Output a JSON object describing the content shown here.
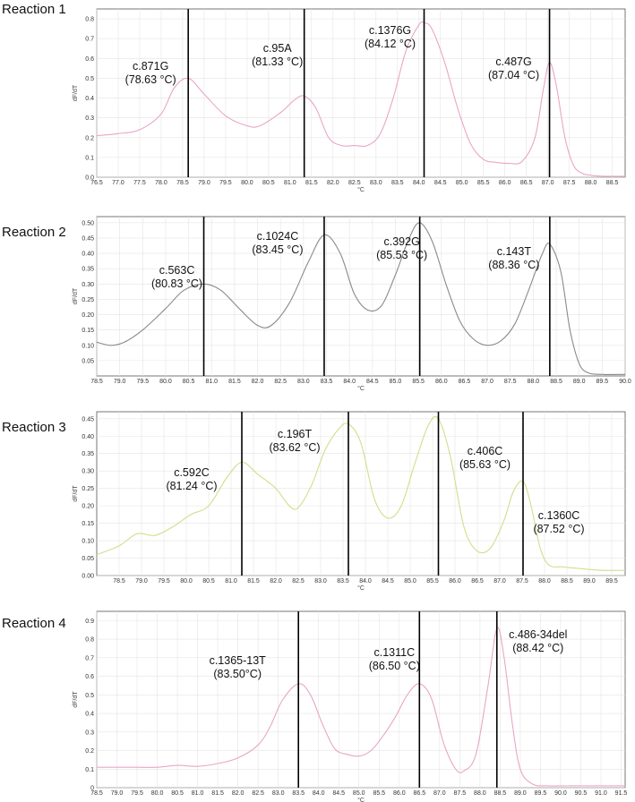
{
  "chart_data": [
    {
      "type": "line",
      "panel_label": "Reaction 1",
      "xlabel": "°C",
      "ylabel": "dF/dT",
      "xlim": [
        76.5,
        88.8
      ],
      "ylim": [
        0.0,
        0.85
      ],
      "x_ticks": [
        "76.5",
        "77.0",
        "77.5",
        "78.0",
        "78.5",
        "79.0",
        "79.5",
        "80.0",
        "80.5",
        "81.0",
        "81.5",
        "82.0",
        "82.5",
        "83.0",
        "83.5",
        "84.0",
        "84.5",
        "85.0",
        "85.5",
        "86.0",
        "86.5",
        "87.0",
        "87.5",
        "88.0",
        "88.5"
      ],
      "y_ticks": [
        "0.0",
        "0.1",
        "0.2",
        "0.3",
        "0.4",
        "0.5",
        "0.6",
        "0.7",
        "0.8"
      ],
      "grid": true,
      "color": "#e8a6c6",
      "series": [
        {
          "x": [
            76.5,
            77.0,
            77.5,
            78.0,
            78.3,
            78.63,
            79.0,
            79.5,
            80.0,
            80.3,
            80.8,
            81.1,
            81.33,
            81.6,
            81.9,
            82.2,
            82.5,
            82.8,
            83.1,
            83.4,
            83.7,
            84.0,
            84.12,
            84.3,
            84.6,
            84.9,
            85.2,
            85.5,
            85.8,
            86.1,
            86.4,
            86.7,
            86.9,
            87.04,
            87.2,
            87.4,
            87.6,
            87.8,
            88.0,
            88.3,
            88.8
          ],
          "y": [
            0.21,
            0.22,
            0.24,
            0.32,
            0.45,
            0.5,
            0.42,
            0.31,
            0.26,
            0.26,
            0.33,
            0.39,
            0.41,
            0.35,
            0.2,
            0.16,
            0.16,
            0.16,
            0.22,
            0.4,
            0.64,
            0.77,
            0.78,
            0.75,
            0.58,
            0.35,
            0.17,
            0.09,
            0.075,
            0.07,
            0.08,
            0.2,
            0.45,
            0.58,
            0.46,
            0.2,
            0.06,
            0.02,
            0.01,
            0.005,
            0.005
          ]
        }
      ],
      "markers": [
        {
          "x": 78.63,
          "label": "c.871G",
          "temp": "(78.63 °C)"
        },
        {
          "x": 81.33,
          "label": "c.95A",
          "temp": "(81.33 °C)"
        },
        {
          "x": 84.12,
          "label": "c.1376G",
          "temp": "(84.12 °C)"
        },
        {
          "x": 87.04,
          "label": "c.487G",
          "temp": "(87.04 °C)"
        }
      ]
    },
    {
      "type": "line",
      "panel_label": "Reaction 2",
      "xlabel": "°C",
      "ylabel": "dF/dT",
      "xlim": [
        78.5,
        90.0
      ],
      "ylim": [
        0.0,
        0.52
      ],
      "x_ticks": [
        "78.5",
        "79.0",
        "79.5",
        "80.0",
        "80.5",
        "81.0",
        "81.5",
        "82.0",
        "82.5",
        "83.0",
        "83.5",
        "84.0",
        "84.5",
        "85.0",
        "85.5",
        "86.0",
        "86.5",
        "87.0",
        "87.5",
        "88.0",
        "88.5",
        "89.0",
        "89.5",
        "90.0"
      ],
      "y_ticks": [
        "0.05",
        "0.10",
        "0.15",
        "0.20",
        "0.25",
        "0.30",
        "0.35",
        "0.40",
        "0.45",
        "0.50"
      ],
      "grid": true,
      "color": "#8a8a8a",
      "series": [
        {
          "x": [
            78.5,
            78.8,
            79.1,
            79.5,
            80.0,
            80.4,
            80.83,
            81.2,
            81.6,
            82.0,
            82.3,
            82.7,
            83.1,
            83.45,
            83.8,
            84.1,
            84.4,
            84.7,
            85.0,
            85.3,
            85.53,
            85.8,
            86.1,
            86.4,
            86.7,
            87.0,
            87.3,
            87.6,
            87.9,
            88.2,
            88.36,
            88.6,
            88.8,
            89.0,
            89.2,
            89.5,
            90.0
          ],
          "y": [
            0.11,
            0.1,
            0.11,
            0.15,
            0.22,
            0.28,
            0.3,
            0.28,
            0.22,
            0.165,
            0.165,
            0.24,
            0.37,
            0.46,
            0.4,
            0.27,
            0.215,
            0.23,
            0.33,
            0.45,
            0.5,
            0.44,
            0.3,
            0.18,
            0.12,
            0.1,
            0.115,
            0.17,
            0.28,
            0.4,
            0.43,
            0.34,
            0.15,
            0.04,
            0.01,
            0.005,
            0.005
          ]
        }
      ],
      "markers": [
        {
          "x": 80.83,
          "label": "c.563C",
          "temp": "(80.83 °C)"
        },
        {
          "x": 83.45,
          "label": "c.1024C",
          "temp": "(83.45 °C)"
        },
        {
          "x": 85.53,
          "label": "c.392G",
          "temp": "(85.53 °C)"
        },
        {
          "x": 88.36,
          "label": "c.143T",
          "temp": "(88.36 °C)"
        }
      ]
    },
    {
      "type": "line",
      "panel_label": "Reaction 3",
      "xlabel": "°C",
      "ylabel": "dF/dT",
      "xlim": [
        78.0,
        89.8
      ],
      "ylim": [
        0.0,
        0.47
      ],
      "x_ticks": [
        "78.5",
        "79.0",
        "79.5",
        "80.0",
        "80.5",
        "81.0",
        "81.5",
        "82.0",
        "82.5",
        "83.0",
        "83.5",
        "84.0",
        "84.5",
        "85.0",
        "85.5",
        "86.0",
        "86.5",
        "87.0",
        "87.5",
        "88.0",
        "88.5",
        "89.0",
        "89.5"
      ],
      "y_ticks": [
        "0.00",
        "0.05",
        "0.10",
        "0.15",
        "0.20",
        "0.25",
        "0.30",
        "0.35",
        "0.40",
        "0.45"
      ],
      "grid": true,
      "color": "#cde08a",
      "series": [
        {
          "x": [
            78.0,
            78.5,
            78.9,
            79.3,
            79.7,
            80.1,
            80.5,
            80.9,
            81.24,
            81.6,
            82.0,
            82.3,
            82.5,
            82.8,
            83.1,
            83.4,
            83.62,
            83.9,
            84.2,
            84.5,
            84.8,
            85.1,
            85.4,
            85.63,
            85.9,
            86.2,
            86.5,
            86.8,
            87.1,
            87.3,
            87.52,
            87.7,
            87.9,
            88.1,
            88.4,
            88.8,
            89.3,
            89.8
          ],
          "y": [
            0.06,
            0.085,
            0.12,
            0.115,
            0.14,
            0.175,
            0.2,
            0.28,
            0.325,
            0.29,
            0.25,
            0.2,
            0.195,
            0.26,
            0.36,
            0.42,
            0.435,
            0.38,
            0.22,
            0.165,
            0.2,
            0.32,
            0.43,
            0.45,
            0.34,
            0.14,
            0.07,
            0.08,
            0.16,
            0.24,
            0.27,
            0.2,
            0.08,
            0.03,
            0.025,
            0.02,
            0.015,
            0.015
          ]
        }
      ],
      "markers": [
        {
          "x": 81.24,
          "label": "c.592C",
          "temp": "(81.24 °C)"
        },
        {
          "x": 83.62,
          "label": "c.196T",
          "temp": "(83.62 °C)"
        },
        {
          "x": 85.63,
          "label": "c.406C",
          "temp": "(85.63 °C)"
        },
        {
          "x": 87.52,
          "label": "c.1360C",
          "temp": "(87.52 °C)"
        }
      ]
    },
    {
      "type": "line",
      "panel_label": "Reaction 4",
      "xlabel": "°C",
      "ylabel": "dF/dT",
      "xlim": [
        78.5,
        91.6
      ],
      "ylim": [
        0.0,
        0.95
      ],
      "x_ticks": [
        "78.5",
        "79.0",
        "79.5",
        "80.0",
        "80.5",
        "81.0",
        "81.5",
        "82.0",
        "82.5",
        "83.0",
        "83.5",
        "84.0",
        "84.5",
        "85.0",
        "85.5",
        "86.0",
        "86.5",
        "87.0",
        "87.5",
        "88.0",
        "88.5",
        "89.0",
        "89.5",
        "90.0",
        "90.5",
        "91.0",
        "91.5"
      ],
      "y_ticks": [
        "0",
        "0.1",
        "0.2",
        "0.3",
        "0.4",
        "0.5",
        "0.6",
        "0.7",
        "0.8",
        "0.9"
      ],
      "grid": true,
      "color": "#e8a6c6",
      "series": [
        {
          "x": [
            78.5,
            79.0,
            79.5,
            80.0,
            80.5,
            81.0,
            81.5,
            82.0,
            82.5,
            82.8,
            83.1,
            83.5,
            83.8,
            84.1,
            84.4,
            84.7,
            85.0,
            85.3,
            85.6,
            85.9,
            86.2,
            86.5,
            86.8,
            87.1,
            87.4,
            87.6,
            87.9,
            88.2,
            88.42,
            88.6,
            88.8,
            89.0,
            89.3,
            89.7,
            90.5,
            91.6
          ],
          "y": [
            0.11,
            0.11,
            0.11,
            0.11,
            0.12,
            0.115,
            0.13,
            0.16,
            0.23,
            0.33,
            0.47,
            0.56,
            0.5,
            0.34,
            0.21,
            0.18,
            0.17,
            0.2,
            0.28,
            0.38,
            0.5,
            0.56,
            0.48,
            0.24,
            0.1,
            0.09,
            0.18,
            0.55,
            0.86,
            0.7,
            0.35,
            0.1,
            0.02,
            0.01,
            0.01,
            0.01
          ]
        }
      ],
      "markers": [
        {
          "x": 83.5,
          "label": "c.1365-13T",
          "temp": "(83.50°C)"
        },
        {
          "x": 86.5,
          "label": "c.1311C",
          "temp": "(86.50 °C)"
        },
        {
          "x": 88.42,
          "label": "c.486-34del",
          "temp": "(88.42 °C)"
        }
      ]
    }
  ]
}
